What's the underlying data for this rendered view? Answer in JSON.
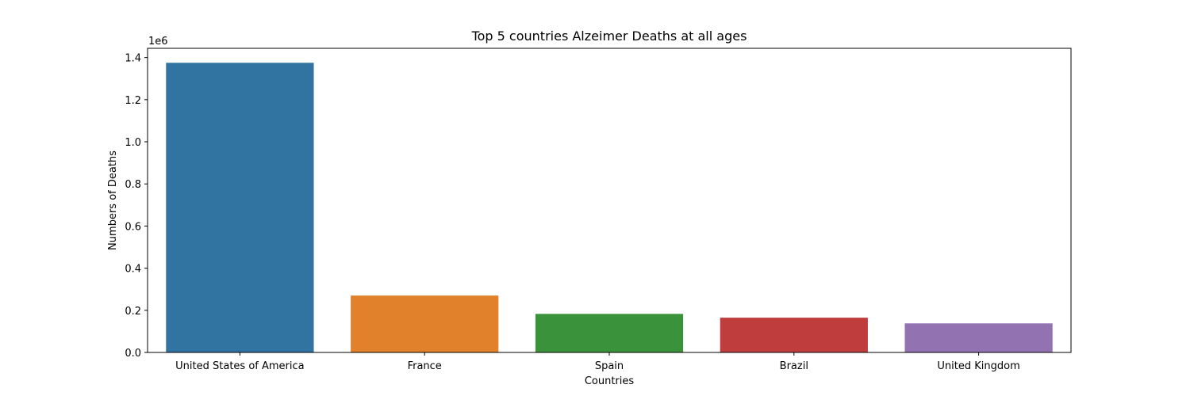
{
  "chart_data": {
    "type": "bar",
    "title": "Top 5 countries Alzeimer Deaths at all ages",
    "xlabel": "Countries",
    "ylabel": "Numbers of Deaths",
    "offset_label": "1e6",
    "scale": 1000000,
    "categories": [
      "United States of America",
      "France",
      "Spain",
      "Brazil",
      "United Kingdom"
    ],
    "values": [
      1375000,
      270000,
      183000,
      165000,
      138000
    ],
    "colors": [
      "#3274a1",
      "#e1812c",
      "#3a923a",
      "#c03d3e",
      "#9372b2"
    ],
    "ylim": [
      0,
      1.4437
    ],
    "yticks": [
      0.0,
      0.2,
      0.4,
      0.6,
      0.8,
      1.0,
      1.2,
      1.4
    ],
    "ytick_labels": [
      "0.0",
      "0.2",
      "0.4",
      "0.6",
      "0.8",
      "1.0",
      "1.2",
      "1.4"
    ],
    "grid": false,
    "legend": "none"
  }
}
